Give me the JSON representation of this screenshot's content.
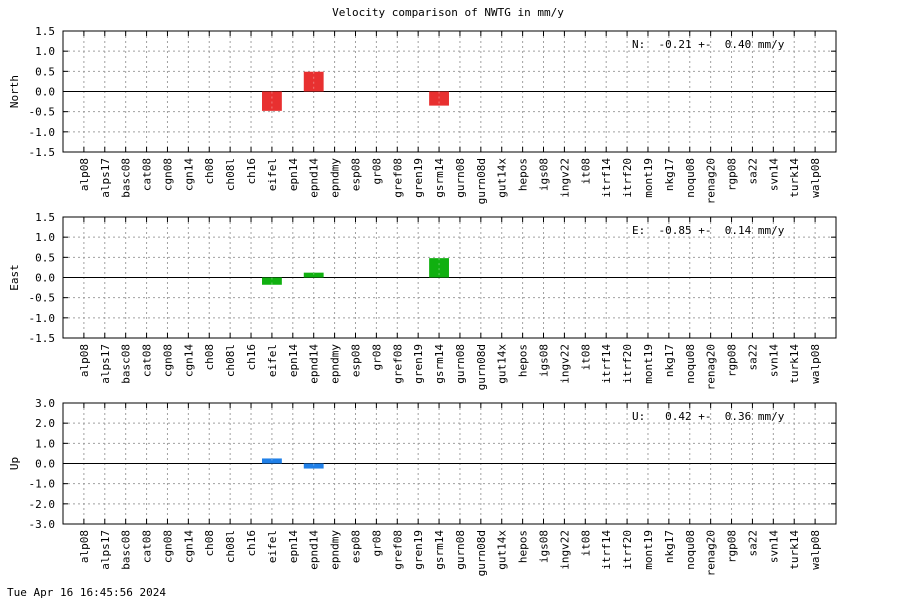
{
  "chart_data": {
    "type": "bar",
    "title": "Velocity comparison of NWTG in mm/y",
    "categories": [
      "alp08",
      "alps17",
      "basc08",
      "cat08",
      "cgn08",
      "cgn14",
      "ch08",
      "ch08l",
      "ch16",
      "eifel",
      "epn14",
      "epnd14",
      "epndmy",
      "esp08",
      "gr08",
      "gref08",
      "gren19",
      "gsrm14",
      "gurn08",
      "gurn08d",
      "gut14x",
      "hepos",
      "igs08",
      "ingv22",
      "it08",
      "itrf14",
      "itrf20",
      "mont19",
      "nkg17",
      "noqu08",
      "renag20",
      "rgp08",
      "sa22",
      "svn14",
      "turk14",
      "walp08"
    ],
    "panels": [
      {
        "name": "north",
        "ylabel": "North",
        "ylim": [
          -1.5,
          1.5
        ],
        "yticks": [
          "1.5",
          "1.0",
          "0.5",
          "0.0",
          "-0.5",
          "-1.0",
          "-1.5"
        ],
        "ytick_values": [
          1.5,
          1.0,
          0.5,
          0.0,
          -0.5,
          -1.0,
          -1.5
        ],
        "color": "#e83030",
        "bars": [
          {
            "category": "eifel",
            "value": -0.48
          },
          {
            "category": "epnd14",
            "value": 0.49
          },
          {
            "category": "gsrm14",
            "value": -0.35
          }
        ],
        "annotation": "N:  -0.21 +-  0.40 mm/y"
      },
      {
        "name": "east",
        "ylabel": "East",
        "ylim": [
          -1.5,
          1.5
        ],
        "yticks": [
          "1.5",
          "1.0",
          "0.5",
          "0.0",
          "-0.5",
          "-1.0",
          "-1.5"
        ],
        "ytick_values": [
          1.5,
          1.0,
          0.5,
          0.0,
          -0.5,
          -1.0,
          -1.5
        ],
        "color": "#10b010",
        "bars": [
          {
            "category": "eifel",
            "value": -0.18
          },
          {
            "category": "epnd14",
            "value": 0.12
          },
          {
            "category": "gsrm14",
            "value": 0.48
          }
        ],
        "annotation": "E:  -0.85 +-  0.14 mm/y"
      },
      {
        "name": "up",
        "ylabel": "Up",
        "ylim": [
          -3.0,
          3.0
        ],
        "yticks": [
          "3.0",
          "2.0",
          "1.0",
          "0.0",
          "-1.0",
          "-2.0",
          "-3.0"
        ],
        "ytick_values": [
          3.0,
          2.0,
          1.0,
          0.0,
          -1.0,
          -2.0,
          -3.0
        ],
        "color": "#2080e8",
        "bars": [
          {
            "category": "eifel",
            "value": 0.25
          },
          {
            "category": "epnd14",
            "value": -0.25
          }
        ],
        "annotation": "U:   0.42 +-  0.36 mm/y"
      }
    ],
    "grid": true
  },
  "footer": {
    "timestamp": "Tue Apr 16 16:45:56 2024"
  }
}
